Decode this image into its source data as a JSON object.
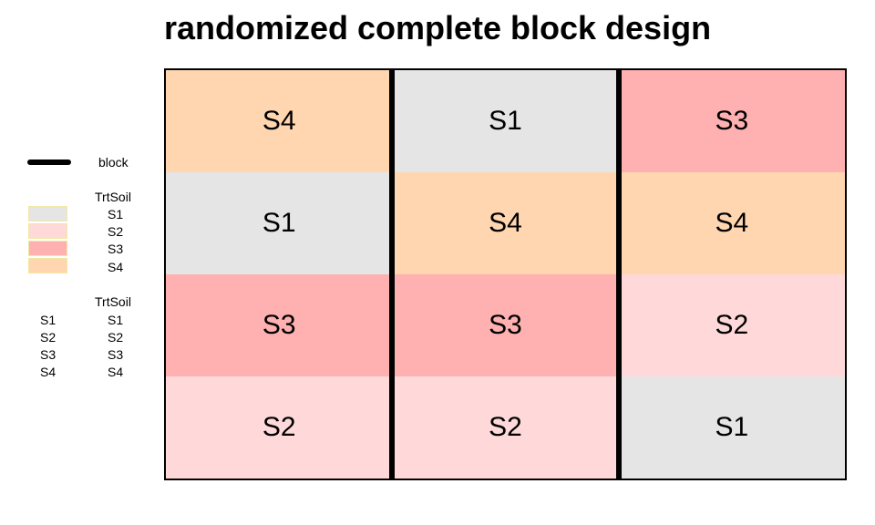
{
  "title": "randomized complete block design",
  "legend": {
    "block_label": "block",
    "fill_title": "TrtSoil",
    "fill_items": [
      {
        "label": "S1",
        "color": "#e5e5e5"
      },
      {
        "label": "S2",
        "color": "#ffd9d9"
      },
      {
        "label": "S3",
        "color": "#ffb0b0"
      },
      {
        "label": "S4",
        "color": "#ffd6b0"
      }
    ],
    "text_title": "TrtSoil",
    "text_items": [
      {
        "key": "S1",
        "label": "S1"
      },
      {
        "key": "S2",
        "label": "S2"
      },
      {
        "key": "S3",
        "label": "S3"
      },
      {
        "key": "S4",
        "label": "S4"
      }
    ]
  },
  "grid": {
    "rows": 4,
    "cols": 3,
    "cells": [
      [
        "S4",
        "S1",
        "S3"
      ],
      [
        "S1",
        "S4",
        "S4"
      ],
      [
        "S3",
        "S3",
        "S2"
      ],
      [
        "S2",
        "S2",
        "S1"
      ]
    ]
  },
  "colors": {
    "S1": "#e5e5e5",
    "S2": "#ffd9d9",
    "S3": "#ffb0b0",
    "S4": "#ffd6b0"
  }
}
